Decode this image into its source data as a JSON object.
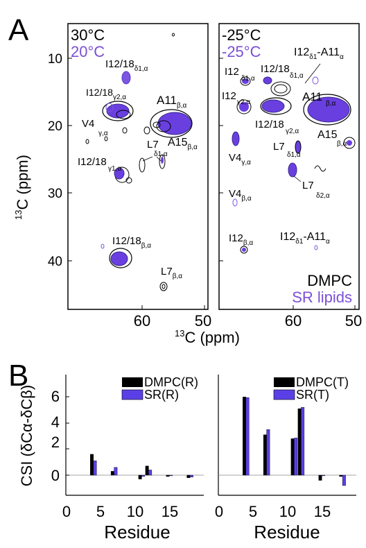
{
  "panel_a": {
    "letter": "A",
    "left_legend": {
      "line1": "30°C",
      "line2": "20°C"
    },
    "right_legend": {
      "line1": "-25°C",
      "line2": "-25°C"
    },
    "lipid_legend": {
      "line1": "DMPC",
      "line2": "SR lipids"
    },
    "x_axis_title": {
      "base": "C  (ppm)",
      "sup": "13"
    },
    "y_axis_title": {
      "base": "C (ppm)",
      "sup": "13"
    },
    "x_ticks": [
      "60",
      "50",
      "60",
      "50"
    ],
    "y_ticks": [
      "10",
      "20",
      "30",
      "40"
    ],
    "left_labels": [
      {
        "main": "I12/18",
        "sub": "δ1,α"
      },
      {
        "main": "I12/18",
        "sub": "γ2,α"
      },
      {
        "main": "A11",
        "sub": "β,α"
      },
      {
        "main": "V4",
        "sub": "γ,α"
      },
      {
        "main": "A15",
        "sub": "β,α"
      },
      {
        "main": "L7",
        "sub": "δ1,α"
      },
      {
        "main": "I12/18",
        "sub": "γ1,α"
      },
      {
        "main": "I12/18",
        "sub": "β,α"
      },
      {
        "main": "L7",
        "sub": "β,α"
      }
    ],
    "right_labels": [
      {
        "main": "I12",
        "sub": "δ1",
        "main2": "-A11",
        "sub2": "α"
      },
      {
        "main": "I12",
        "sub": "δ1,α"
      },
      {
        "main": "I12/18",
        "sub": "δ1,α"
      },
      {
        "main": "I12",
        "sub": "γ2,α"
      },
      {
        "main": "A11",
        "sub": "β,α"
      },
      {
        "main": "I12/18",
        "sub": "γ2,α"
      },
      {
        "main": "V4",
        "sub": "γ,α"
      },
      {
        "main": "L7",
        "sub": "δ1,α"
      },
      {
        "main": "A15",
        "sub": "β,α"
      },
      {
        "main": "L7",
        "sub": "δ2,α"
      },
      {
        "main": "V4",
        "sub": "β,α"
      },
      {
        "main": "I12",
        "sub": "β,α"
      },
      {
        "main": "I12",
        "sub": "δ1",
        "main2": "-A11",
        "sub2": "α"
      }
    ],
    "colors": {
      "dmpc": "#000000",
      "sr": "#6a3fe0",
      "sr_label": "#7b4fd6"
    }
  },
  "panel_b": {
    "letter": "B",
    "y_axis_title": "CSI (δCα-δCβ)",
    "x_axis_title_left": "Residue",
    "x_axis_title_right": "Residue",
    "x_ticks": [
      "0",
      "5",
      "10",
      "15"
    ],
    "y_ticks": [
      "0",
      "2",
      "4",
      "6"
    ]
  },
  "chart_data": [
    {
      "type": "bar",
      "panel": "B-left",
      "xlabel": "Residue",
      "ylabel": "CSI (δCα-δCβ)",
      "xlim": [
        0,
        20
      ],
      "ylim": [
        -1,
        7
      ],
      "series": [
        {
          "name": "DMPC(R)",
          "color": "#000000",
          "points": [
            [
              4,
              1.6
            ],
            [
              7,
              0.3
            ],
            [
              11,
              -0.3
            ],
            [
              12,
              0.7
            ],
            [
              15,
              -0.1
            ],
            [
              18,
              -0.2
            ]
          ]
        },
        {
          "name": "SR(R)",
          "color": "#5b3fe6",
          "points": [
            [
              4,
              1.1
            ],
            [
              7,
              0.6
            ],
            [
              11,
              -0.1
            ],
            [
              12,
              0.4
            ],
            [
              15,
              -0.05
            ],
            [
              18,
              -0.15
            ]
          ]
        }
      ]
    },
    {
      "type": "bar",
      "panel": "B-right",
      "xlabel": "Residue",
      "xlim": [
        0,
        20
      ],
      "ylim": [
        -1,
        7
      ],
      "series": [
        {
          "name": "DMPC(T)",
          "color": "#000000",
          "points": [
            [
              4,
              6.0
            ],
            [
              7,
              3.1
            ],
            [
              11,
              2.8
            ],
            [
              12,
              5.1
            ],
            [
              15,
              -0.4
            ],
            [
              18,
              -0.1
            ]
          ]
        },
        {
          "name": "SR(T)",
          "color": "#5b3fe6",
          "points": [
            [
              4,
              5.95
            ],
            [
              7,
              3.5
            ],
            [
              11,
              2.85
            ],
            [
              12,
              5.2
            ],
            [
              15,
              -0.05
            ],
            [
              18,
              -0.8
            ]
          ]
        }
      ]
    }
  ]
}
